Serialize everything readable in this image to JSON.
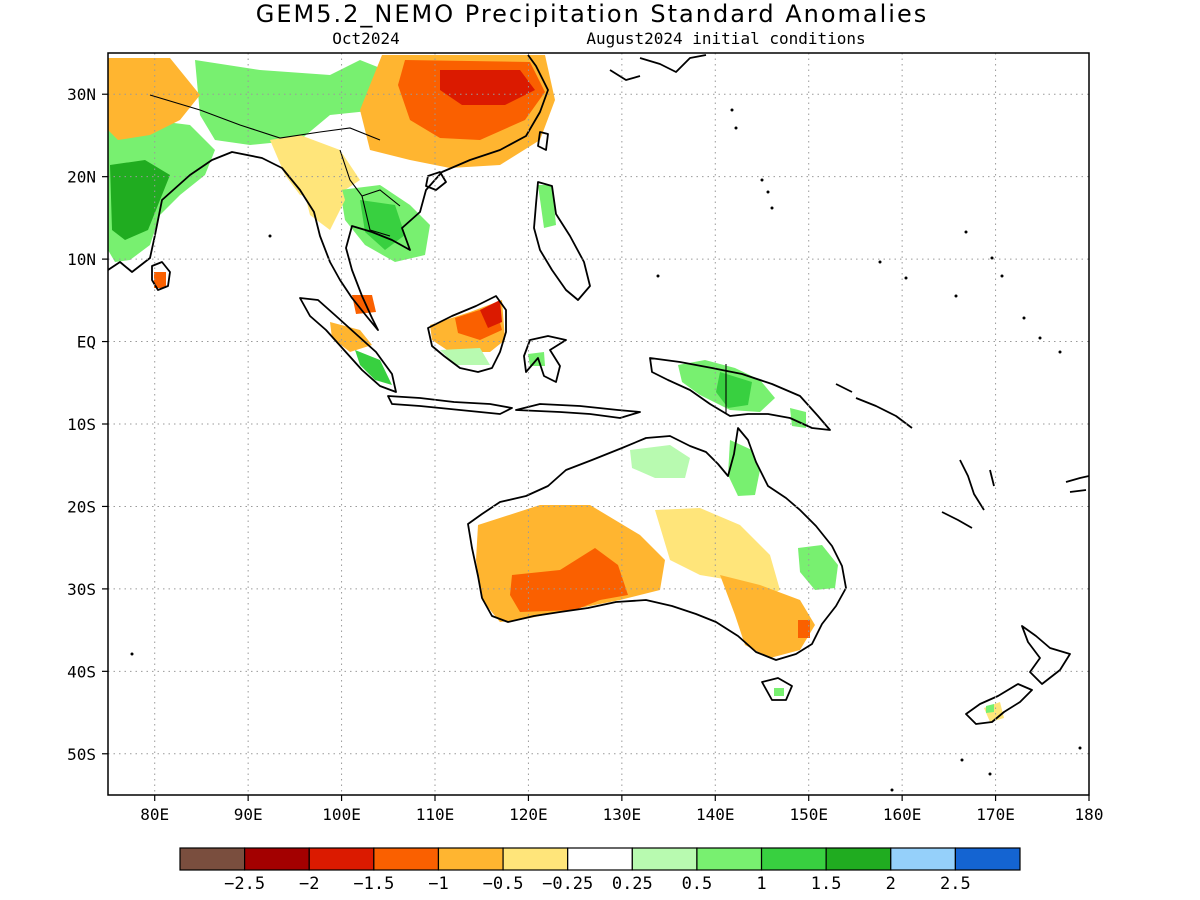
{
  "title": "GEM5.2_NEMO Precipitation Standard Anomalies",
  "valid_month": "Oct2024",
  "initial_conditions": "August2024 initial conditions",
  "map": {
    "lon_range": [
      75,
      180
    ],
    "lat_range": [
      -55,
      35
    ],
    "lon_ticks": [
      {
        "lon": 80,
        "label": "80E"
      },
      {
        "lon": 90,
        "label": "90E"
      },
      {
        "lon": 100,
        "label": "100E"
      },
      {
        "lon": 110,
        "label": "110E"
      },
      {
        "lon": 120,
        "label": "120E"
      },
      {
        "lon": 130,
        "label": "130E"
      },
      {
        "lon": 140,
        "label": "140E"
      },
      {
        "lon": 150,
        "label": "150E"
      },
      {
        "lon": 160,
        "label": "160E"
      },
      {
        "lon": 170,
        "label": "170E"
      },
      {
        "lon": 180,
        "label": "180"
      }
    ],
    "lat_ticks": [
      {
        "lat": 30,
        "label": "30N"
      },
      {
        "lat": 20,
        "label": "20N"
      },
      {
        "lat": 10,
        "label": "10N"
      },
      {
        "lat": 0,
        "label": "EQ"
      },
      {
        "lat": -10,
        "label": "10S"
      },
      {
        "lat": -20,
        "label": "20S"
      },
      {
        "lat": -30,
        "label": "30S"
      },
      {
        "lat": -40,
        "label": "40S"
      },
      {
        "lat": -50,
        "label": "50S"
      }
    ]
  },
  "colorbar": {
    "colors": [
      "#7a4e3e",
      "#a30000",
      "#db1a00",
      "#fa6000",
      "#ffb530",
      "#ffe57a",
      "#ffffff",
      "#b8fab0",
      "#78f070",
      "#38d040",
      "#20ac20",
      "#95d0fa",
      "#1464d2"
    ],
    "labels": [
      "−2.5",
      "−2",
      "−1.5",
      "−1",
      "−0.5",
      "−0.25",
      "0.25",
      "0.5",
      "1",
      "1.5",
      "2",
      "2.5"
    ]
  },
  "regions": [
    {
      "name": "India",
      "category": "above-normal",
      "level": "1"
    },
    {
      "name": "Southeast China",
      "category": "below-normal",
      "level": "-1.5"
    },
    {
      "name": "Northern Borneo",
      "category": "below-normal",
      "level": "-1.5"
    },
    {
      "name": "New Guinea",
      "category": "above-normal",
      "level": "0.5"
    },
    {
      "name": "Western Australia interior",
      "category": "below-normal",
      "level": "-1"
    },
    {
      "name": "Eastern Australia",
      "category": "below-normal",
      "level": "-0.5"
    }
  ]
}
